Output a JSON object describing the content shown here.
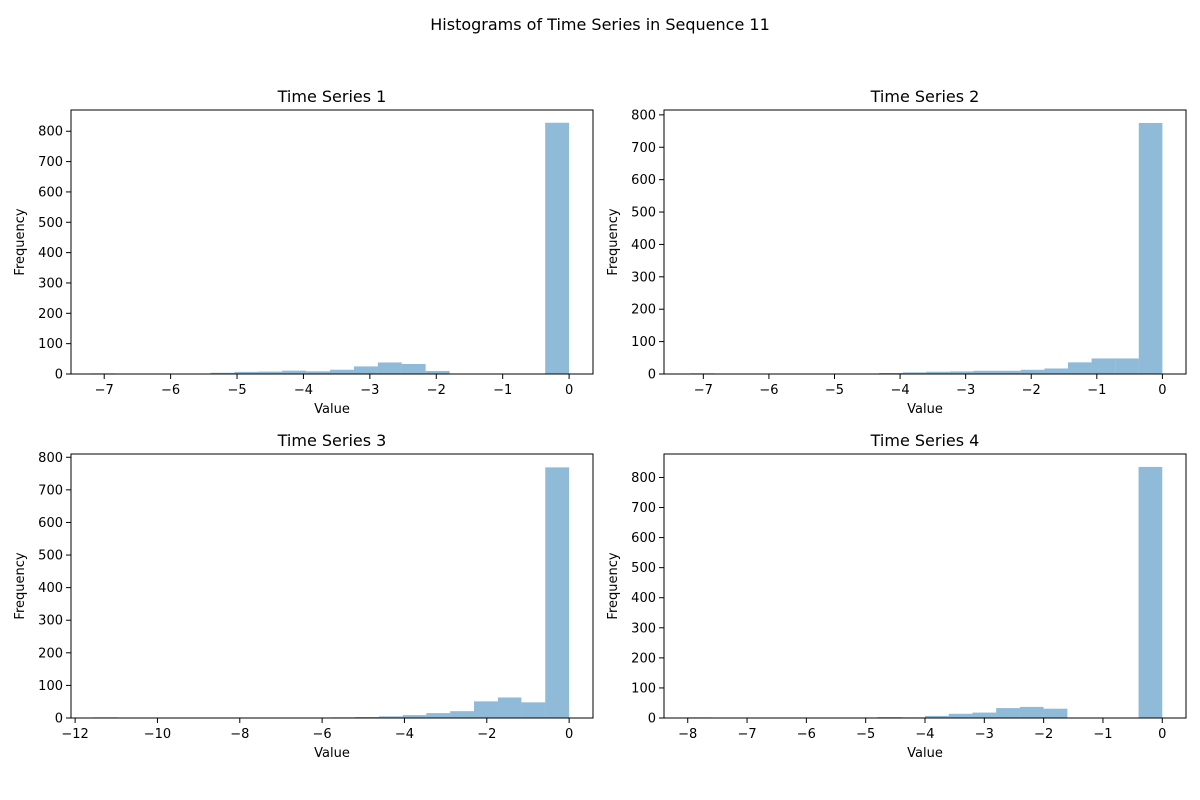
{
  "title": "Histograms of Time Series in Sequence 11",
  "chart_data": [
    {
      "type": "bar",
      "title": "Time Series 1",
      "xlabel": "Value",
      "ylabel": "Frequency",
      "xlim": [
        -7.5,
        0.36
      ],
      "ylim": [
        0,
        870
      ],
      "xticks": [
        -7,
        -6,
        -5,
        -4,
        -3,
        -2,
        -1,
        0
      ],
      "yticks": [
        0,
        100,
        200,
        300,
        400,
        500,
        600,
        700,
        800
      ],
      "bin_edges": [
        -7.2,
        -6.84,
        -6.48,
        -6.12,
        -5.76,
        -5.4,
        -5.04,
        -4.68,
        -4.32,
        -3.96,
        -3.6,
        -3.24,
        -2.88,
        -2.52,
        -2.16,
        -1.8,
        -1.44,
        -1.08,
        -0.72,
        -0.36,
        0.0
      ],
      "counts": [
        2,
        0,
        1,
        1,
        1,
        4,
        7,
        8,
        11,
        9,
        14,
        25,
        38,
        33,
        10,
        0,
        0,
        0,
        0,
        828
      ]
    },
    {
      "type": "bar",
      "title": "Time Series 2",
      "xlabel": "Value",
      "ylabel": "Frequency",
      "xlim": [
        -7.6,
        0.36
      ],
      "ylim": [
        0,
        815
      ],
      "xticks": [
        -7,
        -6,
        -5,
        -4,
        -3,
        -2,
        -1,
        0
      ],
      "yticks": [
        0,
        100,
        200,
        300,
        400,
        500,
        600,
        700,
        800
      ],
      "bin_edges": [
        -7.2,
        -6.84,
        -6.48,
        -6.12,
        -5.76,
        -5.4,
        -5.04,
        -4.68,
        -4.32,
        -3.96,
        -3.6,
        -3.24,
        -2.88,
        -2.52,
        -2.16,
        -1.8,
        -1.44,
        -1.08,
        -0.72,
        -0.36,
        0.0
      ],
      "counts": [
        2,
        0,
        1,
        0,
        1,
        1,
        1,
        1,
        3,
        5,
        7,
        8,
        10,
        10,
        13,
        17,
        36,
        48,
        48,
        775
      ]
    },
    {
      "type": "bar",
      "title": "Time Series 3",
      "xlabel": "Value",
      "ylabel": "Frequency",
      "xlim": [
        -12.1,
        0.58
      ],
      "ylim": [
        0,
        810
      ],
      "xticks": [
        -12,
        -10,
        -8,
        -6,
        -4,
        -2,
        0
      ],
      "yticks": [
        0,
        100,
        200,
        300,
        400,
        500,
        600,
        700,
        800
      ],
      "bin_edges": [
        -11.55,
        -10.97,
        -10.4,
        -9.82,
        -9.24,
        -8.66,
        -8.09,
        -7.51,
        -6.93,
        -6.35,
        -5.78,
        -5.2,
        -4.62,
        -4.04,
        -3.47,
        -2.89,
        -2.31,
        -1.73,
        -1.16,
        -0.58,
        0.0
      ],
      "counts": [
        2,
        0,
        0,
        0,
        0,
        0,
        0,
        0,
        1,
        1,
        2,
        3,
        5,
        9,
        15,
        21,
        51,
        63,
        48,
        769
      ]
    },
    {
      "type": "bar",
      "title": "Time Series 4",
      "xlabel": "Value",
      "ylabel": "Frequency",
      "xlim": [
        -8.4,
        0.4
      ],
      "ylim": [
        0,
        878
      ],
      "xticks": [
        -8,
        -7,
        -6,
        -5,
        -4,
        -3,
        -2,
        -1,
        0
      ],
      "yticks": [
        0,
        100,
        200,
        300,
        400,
        500,
        600,
        700,
        800
      ],
      "bin_edges": [
        -8.0,
        -7.6,
        -7.2,
        -6.8,
        -6.4,
        -6.0,
        -5.6,
        -5.2,
        -4.8,
        -4.4,
        -4.0,
        -3.6,
        -3.2,
        -2.8,
        -2.4,
        -2.0,
        -1.6,
        -1.2,
        -0.8,
        -0.4,
        0.0
      ],
      "counts": [
        2,
        0,
        0,
        1,
        1,
        1,
        1,
        1,
        3,
        2,
        7,
        14,
        18,
        33,
        37,
        31,
        0,
        0,
        0,
        835
      ]
    }
  ]
}
